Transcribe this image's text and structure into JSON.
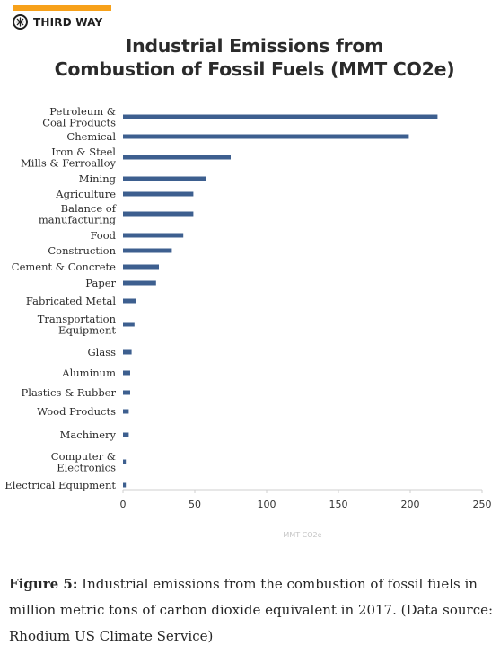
{
  "brand": {
    "name": "THIRD WAY",
    "accent_color": "#f7a11a",
    "icon": "third-way-star-icon"
  },
  "chart_data": {
    "type": "bar",
    "orientation": "horizontal",
    "title": "Industrial Emissions from Combustion of Fossil Fuels (MMT CO2e)",
    "title_lines": [
      "Industrial Emissions from",
      "Combustion of Fossil Fuels (MMT CO2e)"
    ],
    "xlabel": "MMT CO2e",
    "xlim": [
      0,
      250
    ],
    "xticks": [
      0,
      50,
      100,
      150,
      200,
      250
    ],
    "grid": false,
    "bar_color": "#3d5f8f",
    "categories": [
      "Petroleum & Coal Products",
      "Chemical",
      "Iron & Steel Mills & Ferroalloy",
      "Mining",
      "Agriculture",
      "Balance of manufacturing",
      "Food",
      "Construction",
      "Cement & Concrete",
      "Paper",
      "Fabricated Metal",
      "Transportation Equipment",
      "Glass",
      "Aluminum",
      "Plastics & Rubber",
      "Wood Products",
      "Machinery",
      "Computer & Electronics",
      "Electrical Equipment"
    ],
    "category_lines": [
      [
        "Petroleum &",
        "Coal Products"
      ],
      [
        "Chemical"
      ],
      [
        "Iron & Steel",
        "Mills & Ferroalloy"
      ],
      [
        "Mining"
      ],
      [
        "Agriculture"
      ],
      [
        "Balance of",
        "manufacturing"
      ],
      [
        "Food"
      ],
      [
        "Construction"
      ],
      [
        "Cement & Concrete"
      ],
      [
        "Paper"
      ],
      [
        "Fabricated Metal"
      ],
      [
        "Transportation",
        "Equipment"
      ],
      [
        "Glass"
      ],
      [
        "Aluminum"
      ],
      [
        "Plastics & Rubber"
      ],
      [
        "Wood Products"
      ],
      [
        "Machinery"
      ],
      [
        "Computer &",
        "Electronics"
      ],
      [
        "Electrical Equipment"
      ]
    ],
    "values": [
      219,
      199,
      75,
      58,
      49,
      49,
      42,
      34,
      25,
      23,
      9,
      8,
      6,
      5,
      5,
      4,
      4,
      2,
      2
    ]
  },
  "caption": {
    "label": "Figure 5:",
    "text": " Industrial emissions from the combustion of fossil fuels in million metric tons of carbon dioxide equivalent in 2017. (Data source: Rhodium US Climate Service)"
  }
}
